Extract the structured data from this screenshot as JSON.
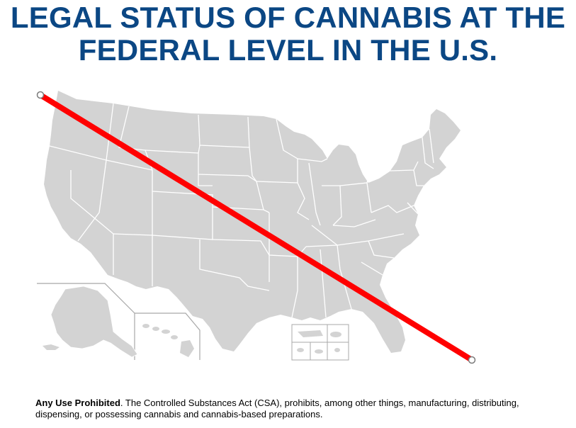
{
  "slide": {
    "title_line_1": "LEGAL STATUS OF CANNABIS AT THE",
    "title_line_2": "FEDERAL LEVEL IN THE U.S.",
    "caption_bold": "Any Use Prohibited",
    "caption_text": ".  The Controlled Substances Act (CSA), prohibits, among other things, manufacturing, distributing, dispensing, or possessing cannabis and cannabis-based preparations."
  },
  "colors": {
    "title": "#0b4784",
    "map_fill": "#d3d3d3",
    "state_border": "#ffffff",
    "inset_frame": "#a8a8a8",
    "prohibition_line": "#ff0000"
  },
  "icons": {
    "map": "us-states-map",
    "line_end": "circle-handle-icon"
  }
}
